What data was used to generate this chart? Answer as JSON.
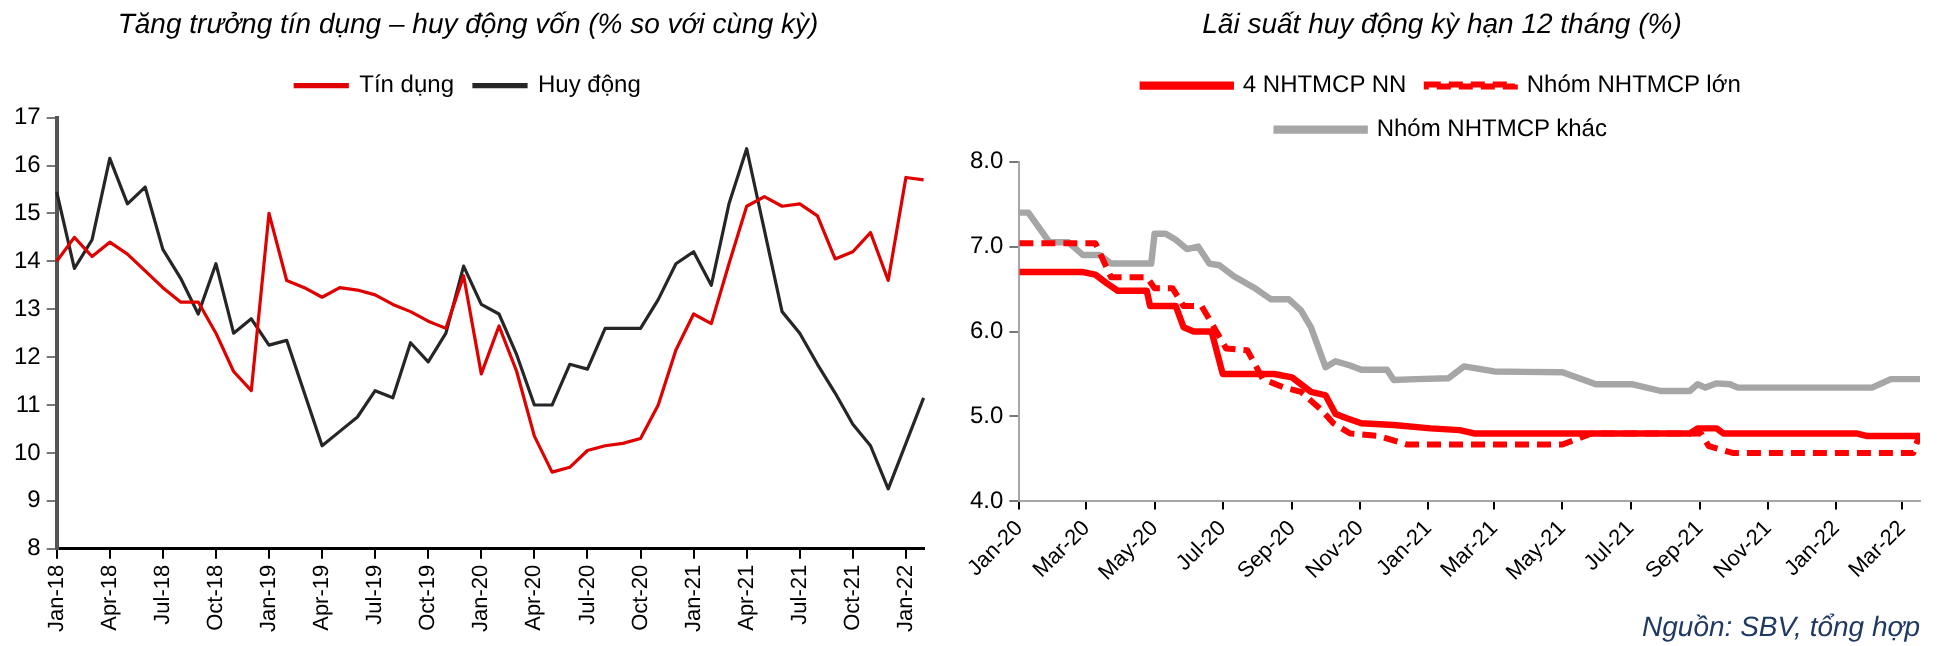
{
  "chart_data": [
    {
      "type": "line",
      "title": "Tăng trưởng tín dụng – huy động vốn (% so với cùng kỳ)",
      "legend": "top",
      "grid": false,
      "marker": "none",
      "categories": [
        "Jan-18",
        null,
        null,
        "Apr-18",
        null,
        null,
        "Jul-18",
        null,
        null,
        "Oct-18",
        null,
        null,
        "Jan-19",
        null,
        null,
        "Apr-19",
        null,
        null,
        "Jul-19",
        null,
        null,
        "Oct-19",
        null,
        null,
        "Jan-20",
        null,
        null,
        "Apr-20",
        null,
        null,
        "Jul-20",
        null,
        null,
        "Oct-20",
        null,
        null,
        "Jan-21",
        null,
        null,
        "Apr-21",
        null,
        null,
        "Jul-21",
        null,
        null,
        "Oct-21",
        null,
        null,
        "Jan-22",
        null
      ],
      "ylim": [
        8,
        17
      ],
      "yticks": [
        8,
        9,
        10,
        11,
        12,
        13,
        14,
        15,
        16,
        17
      ],
      "series": [
        {
          "name": "Tín dụng",
          "color": "#e00000",
          "values": [
            14.0,
            14.5,
            14.1,
            14.4,
            14.15,
            13.8,
            13.45,
            13.15,
            13.15,
            12.5,
            11.7,
            11.3,
            15.0,
            13.6,
            13.45,
            13.25,
            13.45,
            13.4,
            13.3,
            13.1,
            12.95,
            12.75,
            12.6,
            13.7,
            11.65,
            12.65,
            11.7,
            10.35,
            9.6,
            9.7,
            10.05,
            10.15,
            10.2,
            10.3,
            11.0,
            12.15,
            12.9,
            12.7,
            13.95,
            15.15,
            15.35,
            15.15,
            15.2,
            14.95,
            14.05,
            14.2,
            14.6,
            13.6,
            15.75,
            15.7
          ]
        },
        {
          "name": "Huy động",
          "color": "#262626",
          "values": [
            15.45,
            13.85,
            14.45,
            16.15,
            15.2,
            15.55,
            14.25,
            13.65,
            12.9,
            13.95,
            12.5,
            12.8,
            12.25,
            12.35,
            11.25,
            10.15,
            10.45,
            10.75,
            11.3,
            11.15,
            12.3,
            11.9,
            12.5,
            13.9,
            13.1,
            12.9,
            12.05,
            11.0,
            11.0,
            11.85,
            11.75,
            12.6,
            12.6,
            12.6,
            13.2,
            13.95,
            14.2,
            13.5,
            15.2,
            16.35,
            14.65,
            12.95,
            12.5,
            11.85,
            11.25,
            10.6,
            10.15,
            9.25,
            10.2,
            11.15
          ]
        }
      ]
    },
    {
      "type": "line",
      "title": "Lãi suất huy động kỳ hạn 12 tháng (%)",
      "legend": "top",
      "grid": false,
      "marker": "none",
      "xlim": [
        "2020-01-01",
        "2022-03-17"
      ],
      "xticks": [
        {
          "value": "2020-01-01",
          "label": "Jan-20"
        },
        {
          "value": "2020-03-01",
          "label": "Mar-20"
        },
        {
          "value": "2020-05-01",
          "label": "May-20"
        },
        {
          "value": "2020-07-01",
          "label": "Jul-20"
        },
        {
          "value": "2020-09-01",
          "label": "Sep-20"
        },
        {
          "value": "2020-11-01",
          "label": "Nov-20"
        },
        {
          "value": "2021-01-01",
          "label": "Jan-21"
        },
        {
          "value": "2021-03-01",
          "label": "Mar-21"
        },
        {
          "value": "2021-05-01",
          "label": "May-21"
        },
        {
          "value": "2021-07-01",
          "label": "Jul-21"
        },
        {
          "value": "2021-09-01",
          "label": "Sep-21"
        },
        {
          "value": "2021-11-01",
          "label": "Nov-21"
        },
        {
          "value": "2022-01-01",
          "label": "Jan-22"
        },
        {
          "value": "2022-03-01",
          "label": "Mar-22"
        }
      ],
      "ylim": [
        4,
        8
      ],
      "yticks": [
        {
          "value": 4,
          "label": "4.0"
        },
        {
          "value": 5,
          "label": "5.0"
        },
        {
          "value": 6,
          "label": "6.0"
        },
        {
          "value": 7,
          "label": "7.0"
        },
        {
          "value": 8,
          "label": "8.0"
        }
      ],
      "annotations": [
        "Nguồn:  SBV, tổng hợp"
      ],
      "series": [
        {
          "name": "4 NHTMCP NN",
          "color": "#ff0000",
          "line_style": "solid",
          "x": [
            "2020-01-01",
            "2020-02-27",
            "2020-03-09",
            "2020-03-19",
            "2020-03-29",
            "2020-04-24",
            "2020-04-27",
            "2020-05-20",
            "2020-05-27",
            "2020-06-05",
            "2020-06-21",
            "2020-07-01",
            "2020-08-16",
            "2020-09-01",
            "2020-09-18",
            "2020-10-01",
            "2020-10-10",
            "2020-10-20",
            "2020-11-02",
            "2020-12-01",
            "2021-01-03",
            "2021-01-29",
            "2021-02-11",
            "2021-08-23",
            "2021-08-30",
            "2021-09-16",
            "2021-09-22",
            "2022-01-19",
            "2022-01-29",
            "2022-03-17"
          ],
          "values": [
            6.7,
            6.7,
            6.67,
            6.57,
            6.48,
            6.48,
            6.3,
            6.3,
            6.05,
            6.0,
            6.0,
            5.5,
            5.5,
            5.46,
            5.29,
            5.25,
            5.03,
            4.98,
            4.92,
            4.9,
            4.86,
            4.84,
            4.8,
            4.8,
            4.86,
            4.86,
            4.8,
            4.8,
            4.77,
            4.77
          ]
        },
        {
          "name": "Nhóm NHTMCP lớn",
          "color": "#ff0000",
          "line_style": "dashed",
          "x": [
            "2020-01-01",
            "2020-03-09",
            "2020-03-23",
            "2020-04-24",
            "2020-05-01",
            "2020-05-17",
            "2020-05-27",
            "2020-06-12",
            "2020-06-21",
            "2020-07-04",
            "2020-07-23",
            "2020-08-06",
            "2020-08-25",
            "2020-09-09",
            "2020-09-28",
            "2020-10-08",
            "2020-10-23",
            "2020-11-18",
            "2020-12-13",
            "2021-05-01",
            "2021-05-27",
            "2021-09-02",
            "2021-09-09",
            "2021-10-01",
            "2022-03-11",
            "2022-03-17"
          ],
          "values": [
            7.04,
            7.04,
            6.64,
            6.64,
            6.51,
            6.51,
            6.3,
            6.3,
            6.1,
            5.8,
            5.78,
            5.44,
            5.34,
            5.29,
            5.07,
            4.92,
            4.8,
            4.77,
            4.67,
            4.67,
            4.8,
            4.8,
            4.65,
            4.57,
            4.57,
            4.8
          ]
        },
        {
          "name": "Nhóm NHTMCP khác",
          "color": "#a6a6a6",
          "line_style": "solid",
          "x": [
            "2020-01-01",
            "2020-01-09",
            "2020-01-28",
            "2020-02-14",
            "2020-02-27",
            "2020-03-13",
            "2020-03-23",
            "2020-04-28",
            "2020-05-01",
            "2020-05-11",
            "2020-05-20",
            "2020-05-30",
            "2020-06-09",
            "2020-06-19",
            "2020-06-28",
            "2020-07-11",
            "2020-07-31",
            "2020-08-13",
            "2020-08-29",
            "2020-09-09",
            "2020-09-18",
            "2020-10-01",
            "2020-10-10",
            "2020-10-23",
            "2020-11-02",
            "2020-11-25",
            "2020-12-01",
            "2020-12-21",
            "2021-01-19",
            "2021-02-02",
            "2021-03-01",
            "2021-05-01",
            "2021-05-31",
            "2021-07-02",
            "2021-07-28",
            "2021-08-23",
            "2021-08-30",
            "2021-09-06",
            "2021-09-16",
            "2021-09-28",
            "2021-10-05",
            "2022-02-02",
            "2022-02-19",
            "2022-03-17"
          ],
          "values": [
            7.4,
            7.4,
            7.05,
            7.05,
            6.9,
            6.9,
            6.8,
            6.8,
            7.15,
            7.15,
            7.08,
            6.97,
            7.0,
            6.8,
            6.78,
            6.65,
            6.5,
            6.38,
            6.38,
            6.25,
            6.05,
            5.58,
            5.65,
            5.6,
            5.55,
            5.55,
            5.43,
            5.44,
            5.45,
            5.59,
            5.53,
            5.52,
            5.38,
            5.38,
            5.3,
            5.3,
            5.38,
            5.34,
            5.39,
            5.38,
            5.34,
            5.34,
            5.44,
            5.44
          ]
        }
      ]
    }
  ]
}
